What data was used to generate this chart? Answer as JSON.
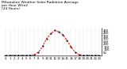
{
  "title": "Milwaukee Weather Solar Radiation Average per Hour W/m2 (24 Hours)",
  "hours": [
    0,
    1,
    2,
    3,
    4,
    5,
    6,
    7,
    8,
    9,
    10,
    11,
    12,
    13,
    14,
    15,
    16,
    17,
    18,
    19,
    20,
    21,
    22,
    23
  ],
  "values": [
    0,
    0,
    0,
    0,
    0,
    0,
    1,
    8,
    55,
    160,
    300,
    390,
    450,
    420,
    370,
    270,
    150,
    55,
    8,
    1,
    0,
    0,
    0,
    0
  ],
  "line_color": "#ff0000",
  "bg_color": "#ffffff",
  "grid_color": "#888888",
  "ylim": [
    0,
    500
  ],
  "ytick_values": [
    50,
    100,
    150,
    200,
    250,
    300,
    350,
    400,
    450
  ],
  "ytick_labels": [
    "50",
    "100",
    "150",
    "200",
    "250",
    "300",
    "350",
    "400",
    "450"
  ],
  "title_fontsize": 3.2,
  "tick_fontsize": 2.8,
  "line_width": 0.7,
  "marker_size": 1.0
}
